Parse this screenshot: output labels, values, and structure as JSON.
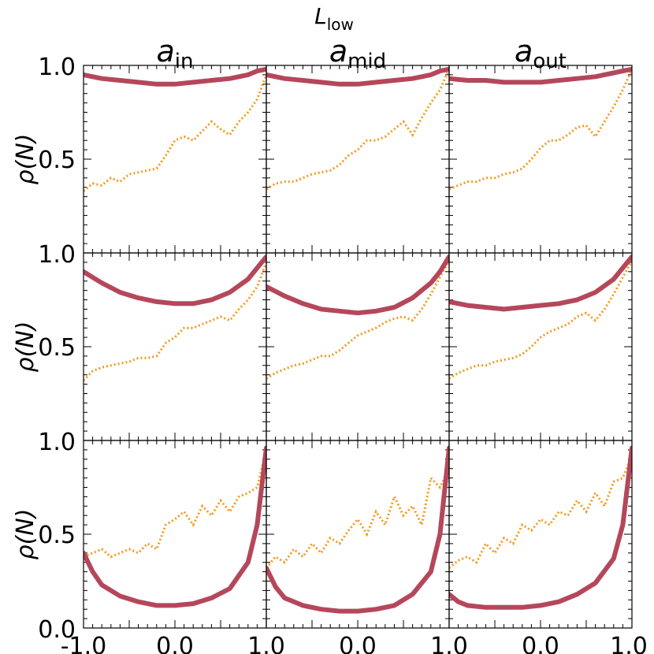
{
  "figure": {
    "suptitle": "L",
    "suptitle_sub": "low",
    "columns": [
      {
        "title": "a",
        "subscript": "in"
      },
      {
        "title": "a",
        "subscript": "mid"
      },
      {
        "title": "a",
        "subscript": "out"
      }
    ],
    "rows": [
      {
        "ylabel": "ρ(N)"
      },
      {
        "ylabel": "ρ(N)"
      },
      {
        "ylabel": "ρ(N)"
      }
    ],
    "ytick_labels": {
      "row0": [
        "1.0",
        "0.5"
      ],
      "row1": [
        "1.0",
        "0.5"
      ],
      "row2": [
        "1.0",
        "0.5",
        "0.0"
      ]
    },
    "xtick_labels": [
      "-1.0",
      "0.0",
      "1.0",
      "0.0",
      "1.0",
      "0.0",
      "1.0"
    ]
  },
  "chart_data": {
    "type": "line",
    "layout": "3x3 grid of panels sharing axes",
    "xlim": [
      -1.0,
      1.0
    ],
    "ylim": [
      0.0,
      1.0
    ],
    "series_styles": {
      "solid": {
        "name": "solid thick line",
        "color": "#b5475a"
      },
      "dotted": {
        "name": "dotted line",
        "color": "#f39a1e"
      }
    },
    "panels": [
      {
        "row": 0,
        "col": 0,
        "solid": {
          "x": [
            -1,
            -0.8,
            -0.6,
            -0.4,
            -0.2,
            0,
            0.2,
            0.4,
            0.6,
            0.8,
            0.9,
            1.0
          ],
          "y": [
            0.95,
            0.93,
            0.92,
            0.91,
            0.9,
            0.9,
            0.91,
            0.92,
            0.93,
            0.95,
            0.97,
            0.98
          ]
        },
        "dotted": {
          "x": [
            -1,
            -0.9,
            -0.8,
            -0.7,
            -0.6,
            -0.5,
            -0.4,
            -0.3,
            -0.2,
            -0.1,
            0,
            0.1,
            0.2,
            0.3,
            0.4,
            0.5,
            0.6,
            0.7,
            0.8,
            0.9,
            1.0
          ],
          "y": [
            0.33,
            0.37,
            0.36,
            0.4,
            0.38,
            0.42,
            0.43,
            0.44,
            0.45,
            0.52,
            0.6,
            0.62,
            0.6,
            0.65,
            0.7,
            0.66,
            0.63,
            0.7,
            0.75,
            0.82,
            0.95
          ]
        }
      },
      {
        "row": 0,
        "col": 1,
        "solid": {
          "x": [
            -1,
            -0.8,
            -0.6,
            -0.4,
            -0.2,
            0,
            0.2,
            0.4,
            0.6,
            0.8,
            0.9,
            1.0
          ],
          "y": [
            0.95,
            0.93,
            0.92,
            0.91,
            0.9,
            0.9,
            0.91,
            0.92,
            0.93,
            0.95,
            0.97,
            0.98
          ]
        },
        "dotted": {
          "x": [
            -1,
            -0.9,
            -0.8,
            -0.7,
            -0.6,
            -0.5,
            -0.4,
            -0.3,
            -0.2,
            -0.1,
            0,
            0.1,
            0.2,
            0.3,
            0.4,
            0.5,
            0.6,
            0.7,
            0.8,
            0.9,
            1.0
          ],
          "y": [
            0.34,
            0.37,
            0.38,
            0.38,
            0.4,
            0.42,
            0.43,
            0.44,
            0.47,
            0.52,
            0.55,
            0.6,
            0.6,
            0.62,
            0.66,
            0.7,
            0.63,
            0.72,
            0.8,
            0.87,
            0.98
          ]
        }
      },
      {
        "row": 0,
        "col": 2,
        "solid": {
          "x": [
            -1,
            -0.8,
            -0.6,
            -0.4,
            -0.2,
            0,
            0.2,
            0.4,
            0.6,
            0.8,
            0.9,
            1.0
          ],
          "y": [
            0.93,
            0.92,
            0.92,
            0.91,
            0.91,
            0.91,
            0.92,
            0.93,
            0.94,
            0.96,
            0.97,
            0.98
          ]
        },
        "dotted": {
          "x": [
            -1,
            -0.9,
            -0.8,
            -0.7,
            -0.6,
            -0.5,
            -0.4,
            -0.3,
            -0.2,
            -0.1,
            0,
            0.1,
            0.2,
            0.3,
            0.4,
            0.5,
            0.6,
            0.7,
            0.8,
            0.9,
            1.0
          ],
          "y": [
            0.34,
            0.36,
            0.38,
            0.38,
            0.4,
            0.4,
            0.42,
            0.43,
            0.45,
            0.5,
            0.56,
            0.6,
            0.6,
            0.63,
            0.67,
            0.68,
            0.62,
            0.7,
            0.78,
            0.87,
            0.98
          ]
        }
      },
      {
        "row": 1,
        "col": 0,
        "solid": {
          "x": [
            -1,
            -0.8,
            -0.6,
            -0.4,
            -0.2,
            0,
            0.2,
            0.4,
            0.6,
            0.8,
            0.9,
            1.0
          ],
          "y": [
            0.9,
            0.84,
            0.79,
            0.76,
            0.74,
            0.73,
            0.73,
            0.75,
            0.79,
            0.86,
            0.92,
            0.98
          ]
        },
        "dotted": {
          "x": [
            -1,
            -0.9,
            -0.8,
            -0.7,
            -0.6,
            -0.5,
            -0.4,
            -0.3,
            -0.2,
            -0.1,
            0,
            0.1,
            0.2,
            0.3,
            0.4,
            0.5,
            0.6,
            0.7,
            0.8,
            0.9,
            1.0
          ],
          "y": [
            0.32,
            0.37,
            0.39,
            0.4,
            0.41,
            0.42,
            0.44,
            0.44,
            0.45,
            0.52,
            0.55,
            0.6,
            0.6,
            0.62,
            0.64,
            0.66,
            0.64,
            0.7,
            0.75,
            0.82,
            0.95
          ]
        }
      },
      {
        "row": 1,
        "col": 1,
        "solid": {
          "x": [
            -1,
            -0.8,
            -0.6,
            -0.4,
            -0.2,
            0,
            0.2,
            0.4,
            0.6,
            0.8,
            0.9,
            1.0
          ],
          "y": [
            0.82,
            0.77,
            0.73,
            0.7,
            0.69,
            0.68,
            0.69,
            0.71,
            0.76,
            0.84,
            0.9,
            0.98
          ]
        },
        "dotted": {
          "x": [
            -1,
            -0.9,
            -0.8,
            -0.7,
            -0.6,
            -0.5,
            -0.4,
            -0.3,
            -0.2,
            -0.1,
            0,
            0.1,
            0.2,
            0.3,
            0.4,
            0.5,
            0.6,
            0.7,
            0.8,
            0.9,
            1.0
          ],
          "y": [
            0.33,
            0.36,
            0.38,
            0.4,
            0.41,
            0.43,
            0.45,
            0.45,
            0.48,
            0.52,
            0.56,
            0.58,
            0.6,
            0.63,
            0.65,
            0.66,
            0.64,
            0.7,
            0.78,
            0.87,
            0.96
          ]
        }
      },
      {
        "row": 1,
        "col": 2,
        "solid": {
          "x": [
            -1,
            -0.8,
            -0.6,
            -0.4,
            -0.2,
            0,
            0.2,
            0.4,
            0.6,
            0.8,
            0.9,
            1.0
          ],
          "y": [
            0.74,
            0.72,
            0.71,
            0.7,
            0.71,
            0.72,
            0.73,
            0.75,
            0.79,
            0.86,
            0.92,
            0.98
          ]
        },
        "dotted": {
          "x": [
            -1,
            -0.9,
            -0.8,
            -0.7,
            -0.6,
            -0.5,
            -0.4,
            -0.3,
            -0.2,
            -0.1,
            0,
            0.1,
            0.2,
            0.3,
            0.4,
            0.5,
            0.6,
            0.7,
            0.8,
            0.9,
            1.0
          ],
          "y": [
            0.33,
            0.36,
            0.38,
            0.4,
            0.4,
            0.42,
            0.43,
            0.44,
            0.46,
            0.5,
            0.55,
            0.58,
            0.6,
            0.62,
            0.66,
            0.68,
            0.64,
            0.7,
            0.78,
            0.87,
            0.96
          ]
        }
      },
      {
        "row": 2,
        "col": 0,
        "solid": {
          "x": [
            -1,
            -0.9,
            -0.8,
            -0.6,
            -0.4,
            -0.2,
            0,
            0.2,
            0.4,
            0.6,
            0.8,
            0.9,
            1.0
          ],
          "y": [
            0.4,
            0.3,
            0.23,
            0.17,
            0.14,
            0.12,
            0.12,
            0.13,
            0.16,
            0.21,
            0.35,
            0.55,
            0.96
          ]
        },
        "dotted": {
          "x": [
            -1,
            -0.9,
            -0.8,
            -0.7,
            -0.6,
            -0.5,
            -0.4,
            -0.3,
            -0.2,
            -0.1,
            0,
            0.1,
            0.2,
            0.3,
            0.4,
            0.5,
            0.6,
            0.7,
            0.8,
            0.9,
            1.0
          ],
          "y": [
            0.38,
            0.4,
            0.42,
            0.38,
            0.4,
            0.42,
            0.4,
            0.45,
            0.42,
            0.55,
            0.58,
            0.62,
            0.55,
            0.65,
            0.6,
            0.68,
            0.62,
            0.7,
            0.72,
            0.75,
            0.95
          ]
        }
      },
      {
        "row": 2,
        "col": 1,
        "solid": {
          "x": [
            -1,
            -0.9,
            -0.8,
            -0.6,
            -0.4,
            -0.2,
            0,
            0.2,
            0.4,
            0.6,
            0.8,
            0.9,
            1.0
          ],
          "y": [
            0.32,
            0.22,
            0.16,
            0.12,
            0.1,
            0.09,
            0.09,
            0.1,
            0.12,
            0.18,
            0.3,
            0.5,
            0.96
          ]
        },
        "dotted": {
          "x": [
            -1,
            -0.9,
            -0.8,
            -0.7,
            -0.6,
            -0.5,
            -0.4,
            -0.3,
            -0.2,
            -0.1,
            0,
            0.1,
            0.2,
            0.3,
            0.4,
            0.5,
            0.6,
            0.7,
            0.8,
            0.9,
            1.0
          ],
          "y": [
            0.32,
            0.38,
            0.35,
            0.42,
            0.38,
            0.45,
            0.4,
            0.48,
            0.45,
            0.52,
            0.58,
            0.5,
            0.62,
            0.55,
            0.7,
            0.6,
            0.65,
            0.55,
            0.8,
            0.75,
            0.85
          ]
        }
      },
      {
        "row": 2,
        "col": 2,
        "solid": {
          "x": [
            -1,
            -0.9,
            -0.8,
            -0.6,
            -0.4,
            -0.2,
            0,
            0.2,
            0.4,
            0.6,
            0.8,
            0.9,
            1.0
          ],
          "y": [
            0.18,
            0.14,
            0.12,
            0.11,
            0.11,
            0.11,
            0.12,
            0.14,
            0.18,
            0.24,
            0.37,
            0.55,
            0.96
          ]
        },
        "dotted": {
          "x": [
            -1,
            -0.9,
            -0.8,
            -0.7,
            -0.6,
            -0.5,
            -0.4,
            -0.3,
            -0.2,
            -0.1,
            0,
            0.1,
            0.2,
            0.3,
            0.4,
            0.5,
            0.6,
            0.7,
            0.8,
            0.9,
            1.0
          ],
          "y": [
            0.32,
            0.36,
            0.38,
            0.35,
            0.45,
            0.4,
            0.48,
            0.45,
            0.55,
            0.52,
            0.58,
            0.55,
            0.62,
            0.6,
            0.68,
            0.62,
            0.72,
            0.65,
            0.78,
            0.8,
            0.92
          ]
        }
      }
    ]
  }
}
